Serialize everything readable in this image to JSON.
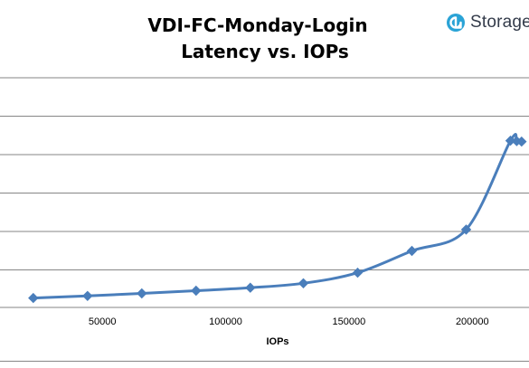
{
  "brand": {
    "name": "Storage",
    "color": "#2aa3d6"
  },
  "chart_data": {
    "type": "line",
    "title_lines": [
      "VDI-FC-Monday-Login",
      "Latency vs. IOPs"
    ],
    "xlabel": "IOPs",
    "ylabel": "",
    "x_ticks": [
      50000,
      100000,
      150000,
      200000
    ],
    "x_tick_labels": [
      "50000",
      "100000",
      "150000",
      "200000"
    ],
    "xlim": [
      8500,
      223000
    ],
    "ylim": [
      0,
      1
    ],
    "y_tick_labels": [],
    "grid": "horizontal",
    "legend": "none",
    "series": [
      {
        "color": "#4a7ebb",
        "marker": "diamond",
        "smooth": true,
        "points": [
          {
            "x": 22000,
            "y": 0.041
          },
          {
            "x": 44000,
            "y": 0.05
          },
          {
            "x": 66000,
            "y": 0.061
          },
          {
            "x": 88000,
            "y": 0.073
          },
          {
            "x": 110000,
            "y": 0.086
          },
          {
            "x": 131500,
            "y": 0.105
          },
          {
            "x": 153500,
            "y": 0.151
          },
          {
            "x": 175500,
            "y": 0.246
          },
          {
            "x": 197500,
            "y": 0.339
          },
          {
            "x": 215500,
            "y": 0.726
          },
          {
            "x": 218000,
            "y": 0.724
          },
          {
            "x": 220000,
            "y": 0.722
          }
        ]
      }
    ]
  }
}
